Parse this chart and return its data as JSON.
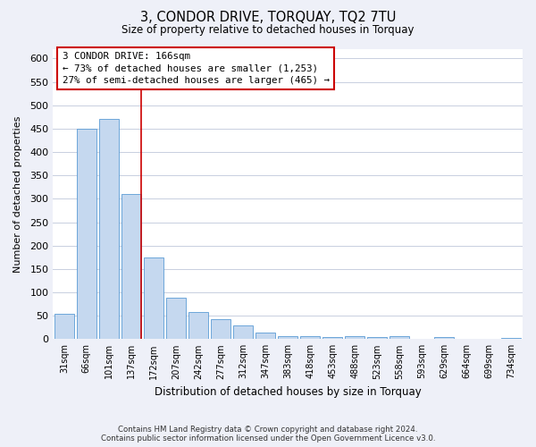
{
  "title": "3, CONDOR DRIVE, TORQUAY, TQ2 7TU",
  "subtitle": "Size of property relative to detached houses in Torquay",
  "xlabel": "Distribution of detached houses by size in Torquay",
  "ylabel": "Number of detached properties",
  "categories": [
    "31sqm",
    "66sqm",
    "101sqm",
    "137sqm",
    "172sqm",
    "207sqm",
    "242sqm",
    "277sqm",
    "312sqm",
    "347sqm",
    "383sqm",
    "418sqm",
    "453sqm",
    "488sqm",
    "523sqm",
    "558sqm",
    "593sqm",
    "629sqm",
    "664sqm",
    "699sqm",
    "734sqm"
  ],
  "values": [
    55,
    450,
    470,
    310,
    175,
    88,
    58,
    42,
    30,
    14,
    7,
    6,
    5,
    6,
    5,
    6,
    0,
    4,
    0,
    0,
    3
  ],
  "bar_fill_color": "#c5d8ef",
  "bar_edge_color": "#5b9bd5",
  "vline_x_idx": 3,
  "vline_color": "#cc0000",
  "annotation_title": "3 CONDOR DRIVE: 166sqm",
  "annotation_line1": "← 73% of detached houses are smaller (1,253)",
  "annotation_line2": "27% of semi-detached houses are larger (465) →",
  "annotation_box_edge": "#cc0000",
  "ylim": [
    0,
    620
  ],
  "yticks": [
    0,
    50,
    100,
    150,
    200,
    250,
    300,
    350,
    400,
    450,
    500,
    550,
    600
  ],
  "footer_line1": "Contains HM Land Registry data © Crown copyright and database right 2024.",
  "footer_line2": "Contains public sector information licensed under the Open Government Licence v3.0.",
  "bg_color": "#eef0f8",
  "plot_bg_color": "#ffffff",
  "grid_color": "#c8cfe0"
}
